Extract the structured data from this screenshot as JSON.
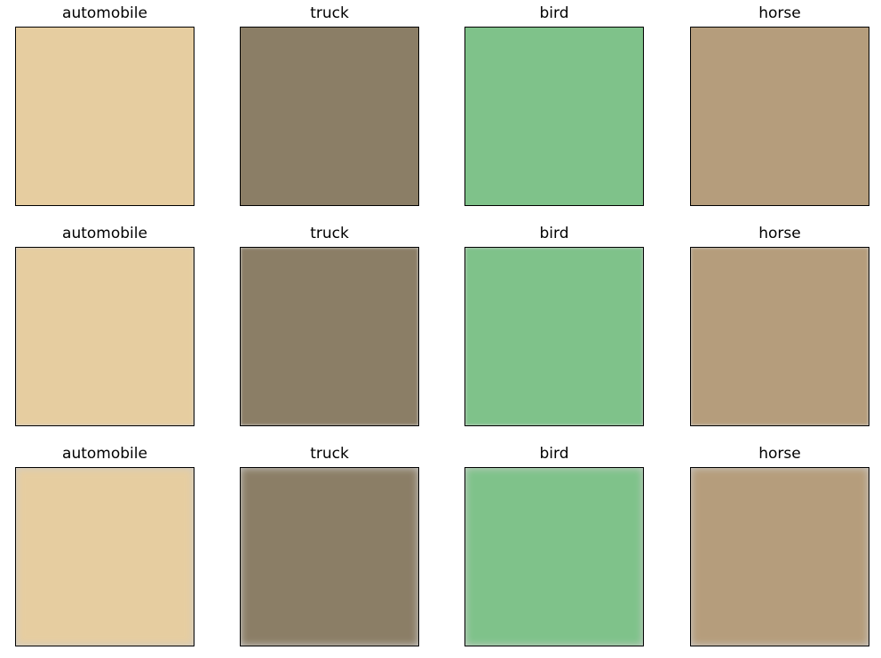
{
  "figure": {
    "rows": [
      {
        "blur": 0,
        "labels": [
          "automobile",
          "truck",
          "bird",
          "horse"
        ]
      },
      {
        "blur": 1.8,
        "labels": [
          "automobile",
          "truck",
          "bird",
          "horse"
        ]
      },
      {
        "blur": 4.5,
        "labels": [
          "automobile",
          "truck",
          "bird",
          "horse"
        ]
      }
    ]
  }
}
